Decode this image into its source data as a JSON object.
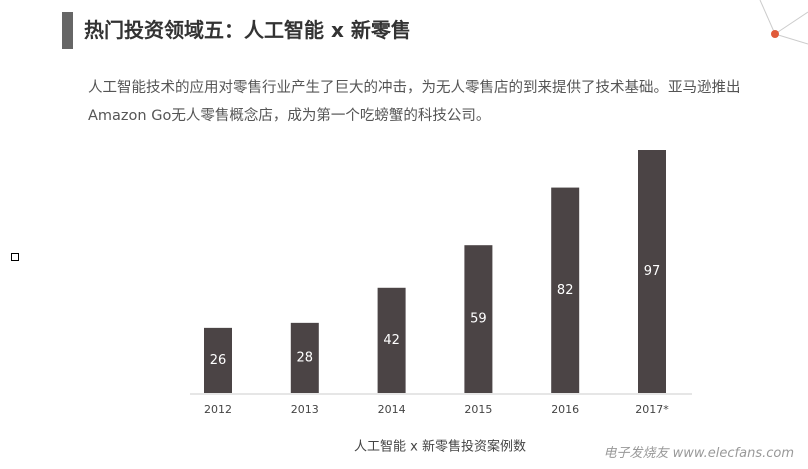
{
  "header": {
    "title": "热门投资领域五：人工智能 x 新零售"
  },
  "paragraph": "人工智能技术的应用对零售行业产生了巨大的冲击，为无人零售店的到来提供了技术基础。亚马逊推出Amazon Go无人零售概念店，成为第一个吃螃蟹的科技公司。",
  "chart_data": {
    "type": "bar",
    "x_label": "人工智能 x 新零售投资案例数",
    "categories": [
      "2012",
      "2013",
      "2014",
      "2015",
      "2016",
      "2017*"
    ],
    "values": [
      26,
      28,
      42,
      59,
      82,
      97
    ],
    "color": "#4b4445"
  },
  "watermark": "电子发烧友 www.elecfans.com"
}
